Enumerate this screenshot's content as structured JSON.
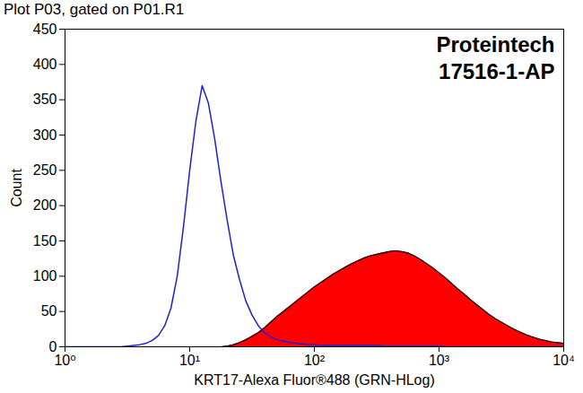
{
  "chart_data": {
    "type": "histogram",
    "title": "Plot P03, gated on P01.R1",
    "annotations": [
      "Proteintech",
      "17516-1-AP"
    ],
    "x_label": "KRT17-Alexa Fluor®488 (GRN-HLog)",
    "y_label": "Count",
    "log": "x",
    "grid": false,
    "xlim": [
      1,
      10000
    ],
    "ylim": [
      0,
      450
    ],
    "xticks": [
      {
        "value": 1,
        "label": "10⁰"
      },
      {
        "value": 10,
        "label": "10¹"
      },
      {
        "value": 100,
        "label": "10²"
      },
      {
        "value": 1000,
        "label": "10³"
      },
      {
        "value": 10000,
        "label": "10⁴"
      }
    ],
    "yticks": [
      0,
      50,
      100,
      150,
      200,
      250,
      300,
      350,
      400,
      450
    ],
    "x": [
      1,
      1.122,
      1.259,
      1.413,
      1.585,
      1.778,
      1.995,
      2.239,
      2.512,
      2.818,
      3.162,
      3.548,
      3.981,
      4.467,
      5.012,
      5.623,
      6.31,
      7.079,
      7.943,
      8.913,
      10,
      11.22,
      12.59,
      14.13,
      15.85,
      17.78,
      19.95,
      22.39,
      25.12,
      28.18,
      31.62,
      35.48,
      39.81,
      44.67,
      50.12,
      56.23,
      63.1,
      70.79,
      79.43,
      89.13,
      100,
      112.2,
      125.9,
      141.3,
      158.5,
      177.8,
      199.5,
      223.9,
      251.2,
      281.8,
      316.2,
      354.8,
      398.1,
      446.7,
      501.2,
      562.3,
      631,
      707.9,
      794.3,
      891.3,
      1000,
      1122,
      1259,
      1413,
      1585,
      1778,
      1995,
      2239,
      2512,
      2818,
      3162,
      3548,
      3981,
      4467,
      5012,
      5623,
      6310,
      7079,
      7943,
      8913,
      10000
    ],
    "series": [
      {
        "type": "area",
        "color": "#ff0000",
        "values": [
          0,
          0,
          0,
          0,
          0,
          0,
          0,
          0,
          0,
          0,
          0,
          0,
          0,
          0,
          0,
          0,
          0,
          0,
          0,
          0,
          0,
          0,
          0,
          0,
          0,
          0,
          1,
          3,
          6,
          10,
          15,
          20,
          27,
          35,
          43,
          50,
          57,
          64,
          71,
          78,
          85,
          91,
          97,
          103,
          108,
          113,
          118,
          122,
          126,
          129,
          131,
          133,
          135,
          136,
          135,
          133,
          129,
          124,
          118,
          112,
          105,
          98,
          90,
          82,
          75,
          67,
          60,
          53,
          46,
          40,
          35,
          30,
          25,
          21,
          17,
          14,
          11,
          9,
          7,
          6,
          5
        ]
      },
      {
        "type": "line",
        "color": "#2020d0",
        "values": [
          0,
          0,
          0,
          0,
          0,
          0,
          0,
          0,
          0,
          0,
          1,
          2,
          3,
          5,
          9,
          16,
          30,
          55,
          100,
          170,
          250,
          320,
          370,
          345,
          295,
          235,
          180,
          130,
          95,
          65,
          45,
          30,
          20,
          14,
          10,
          8,
          6,
          5,
          4,
          3,
          3,
          2,
          2,
          2,
          2,
          2,
          2,
          2,
          2,
          2,
          2,
          1,
          1,
          1,
          1,
          1,
          1,
          1,
          1,
          1,
          1,
          0,
          0,
          0,
          0,
          0,
          0,
          0,
          0,
          0,
          0,
          0,
          0,
          0,
          0,
          0,
          0,
          0,
          0,
          0,
          0
        ]
      }
    ]
  }
}
